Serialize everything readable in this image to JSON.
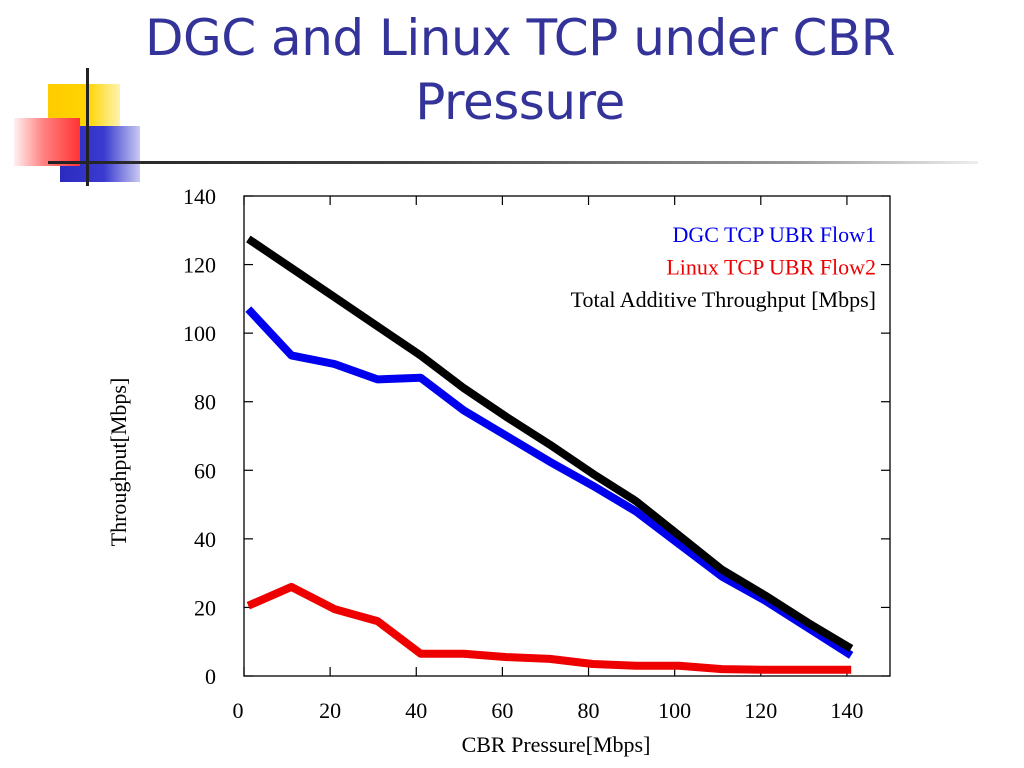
{
  "slide": {
    "title": "DGC and Linux TCP under CBR Pressure"
  },
  "colors": {
    "title": "#333399",
    "flow1": "#0000ee",
    "flow2": "#ee0000",
    "total": "#000000"
  },
  "chart_data": {
    "type": "line",
    "title": "",
    "xlabel": "CBR Pressure[Mbps]",
    "ylabel": "Throughput[Mbps]",
    "xlim": [
      0,
      150
    ],
    "ylim": [
      0,
      140
    ],
    "xticks": [
      0,
      20,
      40,
      60,
      80,
      100,
      120,
      140
    ],
    "yticks": [
      0,
      20,
      40,
      60,
      80,
      100,
      120,
      140
    ],
    "legend_position": "top-right",
    "grid": false,
    "series": [
      {
        "name": "DGC TCP UBR Flow1",
        "color": "#0000ee",
        "x": [
          1,
          11,
          21,
          31,
          41,
          51,
          61,
          71,
          81,
          91,
          101,
          111,
          121,
          131,
          141
        ],
        "y": [
          107,
          93.5,
          91,
          86.5,
          87,
          77.5,
          70,
          62.5,
          55.5,
          48,
          38.5,
          29,
          22,
          14,
          6
        ]
      },
      {
        "name": "Linux TCP UBR Flow2",
        "color": "#ee0000",
        "x": [
          1,
          11,
          21,
          31,
          41,
          51,
          61,
          71,
          81,
          91,
          101,
          111,
          121,
          131,
          141
        ],
        "y": [
          20.5,
          26,
          19.5,
          16,
          6.5,
          6.5,
          5.5,
          5,
          3.5,
          3,
          3,
          2,
          1.8,
          1.8,
          1.8
        ]
      },
      {
        "name": "Total Additive Throughput [Mbps]",
        "color": "#000000",
        "x": [
          1,
          11,
          21,
          31,
          41,
          51,
          61,
          71,
          81,
          91,
          101,
          111,
          121,
          131,
          141
        ],
        "y": [
          127.5,
          119,
          110.5,
          102,
          93.5,
          84,
          75.5,
          67.5,
          59,
          51,
          41,
          31,
          23.5,
          15.5,
          8
        ]
      }
    ]
  }
}
